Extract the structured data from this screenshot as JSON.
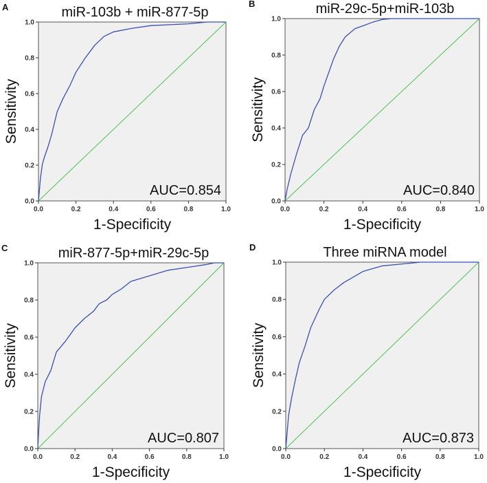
{
  "chart_data": [
    {
      "type": "line",
      "panel_label": "A",
      "title": "miR-103b + miR-877-5p",
      "xlabel": "1-Specificity",
      "ylabel": "Sensitivity",
      "xlim": [
        0,
        1
      ],
      "ylim": [
        0,
        1
      ],
      "xticks": [
        "0.0",
        "0.2",
        "0.4",
        "0.6",
        "0.8",
        "1.0"
      ],
      "yticks": [
        "0.0",
        "0.2",
        "0.4",
        "0.6",
        "0.8",
        "1.0"
      ],
      "annotation": "AUC=0.854",
      "grid": false,
      "background": "#f0f0f0",
      "curve_color": "#3a4fb0",
      "reference_color": "#4cc24c",
      "roc": [
        [
          0,
          0
        ],
        [
          0.01,
          0.12
        ],
        [
          0.02,
          0.2
        ],
        [
          0.03,
          0.24
        ],
        [
          0.05,
          0.3
        ],
        [
          0.07,
          0.37
        ],
        [
          0.1,
          0.5
        ],
        [
          0.13,
          0.57
        ],
        [
          0.17,
          0.65
        ],
        [
          0.2,
          0.72
        ],
        [
          0.25,
          0.8
        ],
        [
          0.3,
          0.87
        ],
        [
          0.35,
          0.92
        ],
        [
          0.4,
          0.945
        ],
        [
          0.5,
          0.965
        ],
        [
          0.6,
          0.98
        ],
        [
          0.8,
          0.99
        ],
        [
          0.9,
          1
        ],
        [
          1,
          1
        ]
      ],
      "reference": [
        [
          0,
          0
        ],
        [
          1,
          1
        ]
      ]
    },
    {
      "type": "line",
      "panel_label": "B",
      "title": "miR-29c-5p+miR-103b",
      "xlabel": "1-Specificity",
      "ylabel": "Sensitivity",
      "xlim": [
        0,
        1
      ],
      "ylim": [
        0,
        1
      ],
      "xticks": [
        "0.0",
        "0.2",
        "0.4",
        "0.6",
        "0.8",
        "1.0"
      ],
      "yticks": [
        "0.0",
        "0.2",
        "0.4",
        "0.6",
        "0.8",
        "1.0"
      ],
      "annotation": "AUC=0.840",
      "grid": false,
      "background": "#f0f0f0",
      "curve_color": "#3a4fb0",
      "reference_color": "#4cc24c",
      "roc": [
        [
          0,
          0
        ],
        [
          0.01,
          0.06
        ],
        [
          0.03,
          0.15
        ],
        [
          0.06,
          0.26
        ],
        [
          0.09,
          0.36
        ],
        [
          0.12,
          0.4
        ],
        [
          0.15,
          0.5
        ],
        [
          0.18,
          0.56
        ],
        [
          0.2,
          0.63
        ],
        [
          0.23,
          0.72
        ],
        [
          0.25,
          0.78
        ],
        [
          0.28,
          0.85
        ],
        [
          0.31,
          0.9
        ],
        [
          0.36,
          0.945
        ],
        [
          0.4,
          0.96
        ],
        [
          0.45,
          0.98
        ],
        [
          0.5,
          0.995
        ],
        [
          0.55,
          1
        ],
        [
          1,
          1
        ]
      ],
      "reference": [
        [
          0,
          0
        ],
        [
          1,
          1
        ]
      ]
    },
    {
      "type": "line",
      "panel_label": "C",
      "title": "miR-877-5p+miR-29c-5p",
      "xlabel": "1-Specificity",
      "ylabel": "Sensitivity",
      "xlim": [
        0,
        1
      ],
      "ylim": [
        0,
        1
      ],
      "xticks": [
        "0.0",
        "0.2",
        "0.4",
        "0.6",
        "0.8",
        "1.0"
      ],
      "yticks": [
        "0.0",
        "0.2",
        "0.4",
        "0.6",
        "0.8",
        "1.0"
      ],
      "annotation": "AUC=0.807",
      "grid": false,
      "background": "#f0f0f0",
      "curve_color": "#3a4fb0",
      "reference_color": "#4cc24c",
      "roc": [
        [
          0,
          0
        ],
        [
          0.005,
          0.1
        ],
        [
          0.01,
          0.18
        ],
        [
          0.02,
          0.28
        ],
        [
          0.04,
          0.36
        ],
        [
          0.07,
          0.42
        ],
        [
          0.1,
          0.52
        ],
        [
          0.15,
          0.58
        ],
        [
          0.2,
          0.65
        ],
        [
          0.25,
          0.7
        ],
        [
          0.3,
          0.74
        ],
        [
          0.33,
          0.78
        ],
        [
          0.37,
          0.8
        ],
        [
          0.4,
          0.83
        ],
        [
          0.45,
          0.86
        ],
        [
          0.5,
          0.9
        ],
        [
          0.6,
          0.93
        ],
        [
          0.7,
          0.96
        ],
        [
          0.8,
          0.975
        ],
        [
          0.9,
          0.99
        ],
        [
          0.95,
          1
        ],
        [
          1,
          1
        ]
      ],
      "reference": [
        [
          0,
          0
        ],
        [
          1,
          1
        ]
      ]
    },
    {
      "type": "line",
      "panel_label": "D",
      "title": "Three miRNA model",
      "xlabel": "1-Specificity",
      "ylabel": "Sensitivity",
      "xlim": [
        0,
        1
      ],
      "ylim": [
        0,
        1
      ],
      "xticks": [
        "0.0",
        "0.2",
        "0.4",
        "0.6",
        "0.8",
        "1.0"
      ],
      "yticks": [
        "0.0",
        "0.2",
        "0.4",
        "0.6",
        "0.8",
        "1.0"
      ],
      "annotation": "AUC=0.873",
      "grid": false,
      "background": "#f0f0f0",
      "curve_color": "#3a4fb0",
      "reference_color": "#4cc24c",
      "roc": [
        [
          0,
          0
        ],
        [
          0.005,
          0.06
        ],
        [
          0.015,
          0.18
        ],
        [
          0.03,
          0.27
        ],
        [
          0.05,
          0.37
        ],
        [
          0.07,
          0.46
        ],
        [
          0.1,
          0.55
        ],
        [
          0.13,
          0.65
        ],
        [
          0.17,
          0.74
        ],
        [
          0.2,
          0.8
        ],
        [
          0.25,
          0.85
        ],
        [
          0.3,
          0.89
        ],
        [
          0.4,
          0.95
        ],
        [
          0.5,
          0.98
        ],
        [
          0.6,
          0.99
        ],
        [
          0.7,
          1
        ],
        [
          1,
          1
        ]
      ],
      "reference": [
        [
          0,
          0
        ],
        [
          1,
          1
        ]
      ]
    }
  ]
}
